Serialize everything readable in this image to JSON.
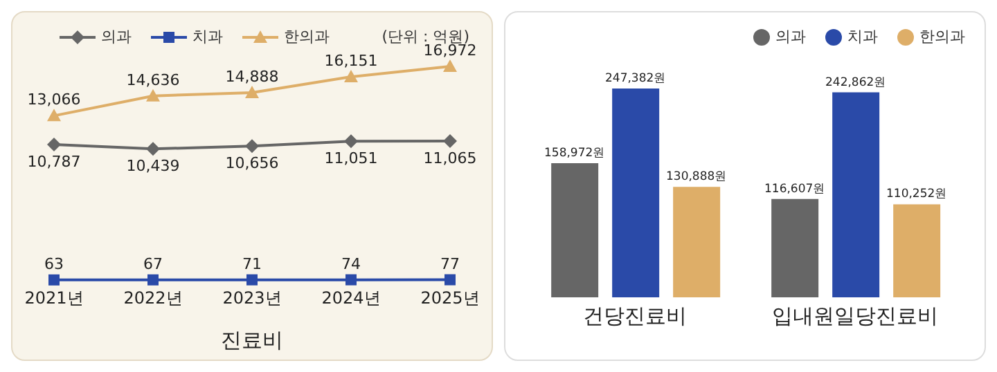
{
  "chart_data": [
    {
      "type": "line",
      "categories": [
        "2021년",
        "2022년",
        "2023년",
        "2024년",
        "2025년"
      ],
      "xlabel": "진료비",
      "annotations": [
        "(단위 : 억원)"
      ],
      "legend": "top",
      "series": [
        {
          "name": "의과",
          "color": "#666666",
          "marker": "diamond",
          "values": [
            10787,
            10439,
            10656,
            11051,
            11065
          ],
          "value_labels": [
            "10,787",
            "10,439",
            "10,656",
            "11,051",
            "11,065"
          ]
        },
        {
          "name": "치과",
          "color": "#2a4aa8",
          "marker": "square",
          "values": [
            63,
            67,
            71,
            74,
            77
          ],
          "value_labels": [
            "63",
            "67",
            "71",
            "74",
            "77"
          ]
        },
        {
          "name": "한의과",
          "color": "#deae68",
          "marker": "triangle",
          "values": [
            13066,
            14636,
            14888,
            16151,
            16972
          ],
          "value_labels": [
            "13,066",
            "14,636",
            "14,888",
            "16,151",
            "16,972"
          ]
        }
      ]
    },
    {
      "type": "bar",
      "categories": [
        "건당진료비",
        "입내원일당진료비"
      ],
      "legend": "top right",
      "series": [
        {
          "name": "의과",
          "color": "#666666",
          "values": [
            158972,
            116607
          ],
          "value_labels": [
            "158,972원",
            "116,607원"
          ]
        },
        {
          "name": "치과",
          "color": "#2a4aa8",
          "values": [
            247382,
            242862
          ],
          "value_labels": [
            "247,382원",
            "242,862원"
          ]
        },
        {
          "name": "한의과",
          "color": "#deae68",
          "values": [
            130888,
            110252
          ],
          "value_labels": [
            "130,888원",
            "110,252원"
          ]
        }
      ]
    }
  ]
}
